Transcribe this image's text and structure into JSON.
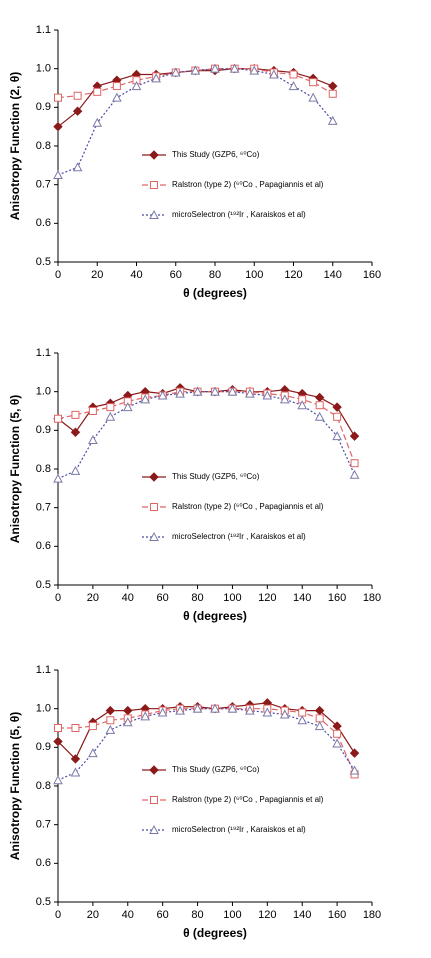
{
  "chart_data": [
    {
      "type": "line",
      "xlabel": "θ (degrees)",
      "ylabel": "Anisotropy Function (2, θ)",
      "x": [
        0,
        10,
        20,
        30,
        40,
        50,
        60,
        70,
        80,
        90,
        100,
        110,
        120,
        130,
        140
      ],
      "xlim": [
        0,
        160
      ],
      "xticks": [
        0,
        20,
        40,
        60,
        80,
        100,
        120,
        140,
        160
      ],
      "ylim": [
        0.5,
        1.1
      ],
      "yticks": [
        0.5,
        0.6,
        0.7,
        0.8,
        0.9,
        {
          "value": 1,
          "label": "1.0"
        },
        1.1
      ],
      "series": [
        {
          "name": "This Study (GZP6, ⁶⁰Co)",
          "color": "#8b1a1a",
          "marker": "diamond",
          "dash": "solid",
          "values": [
            0.85,
            0.89,
            0.955,
            0.97,
            0.985,
            0.985,
            0.99,
            0.995,
            0.995,
            1.0,
            1.0,
            0.995,
            0.99,
            0.975,
            0.955
          ]
        },
        {
          "name": "Ralstron (type 2) (⁶⁰Co , Papagiannis et al)",
          "color": "#e06666",
          "marker": "square",
          "dash": "dashed",
          "values": [
            0.925,
            0.93,
            0.94,
            0.955,
            0.97,
            0.98,
            0.99,
            0.995,
            1.0,
            1.0,
            1.0,
            0.99,
            0.985,
            0.965,
            0.935
          ]
        },
        {
          "name": "microSelectron (¹⁹²Ir , Karaiskos et al)",
          "color": "#4a4aa8",
          "marker": "triangle",
          "dash": "dotted",
          "values": [
            0.725,
            0.745,
            0.86,
            0.925,
            0.955,
            0.975,
            0.99,
            0.995,
            1.0,
            1.0,
            0.995,
            0.985,
            0.955,
            0.925,
            0.865
          ]
        }
      ]
    },
    {
      "type": "line",
      "xlabel": "θ (degrees)",
      "ylabel": "Anisotropy Function (5, θ)",
      "x": [
        0,
        10,
        20,
        30,
        40,
        50,
        60,
        70,
        80,
        90,
        100,
        110,
        120,
        130,
        140,
        150,
        160,
        170
      ],
      "xlim": [
        0,
        180
      ],
      "xticks": [
        0,
        20,
        40,
        60,
        80,
        100,
        120,
        140,
        160,
        180
      ],
      "ylim": [
        0.5,
        1.1
      ],
      "yticks": [
        0.5,
        0.6,
        0.7,
        0.8,
        0.9,
        {
          "value": 1,
          "label": "1.0"
        },
        1.1
      ],
      "series": [
        {
          "name": "This Study (GZP6, ⁶⁰Co)",
          "color": "#8b1a1a",
          "marker": "diamond",
          "dash": "solid",
          "values": [
            0.93,
            0.895,
            0.96,
            0.97,
            0.99,
            1.0,
            0.995,
            1.01,
            1.0,
            1.0,
            1.005,
            1.0,
            1.0,
            1.005,
            0.995,
            0.985,
            0.96,
            0.885
          ]
        },
        {
          "name": "Ralstron (type 2) (⁶⁰Co , Papagiannis et al)",
          "color": "#e06666",
          "marker": "square",
          "dash": "dashed",
          "values": [
            0.93,
            0.94,
            0.95,
            0.96,
            0.975,
            0.985,
            0.99,
            1.0,
            1.0,
            1.0,
            1.0,
            1.0,
            0.995,
            0.99,
            0.98,
            0.965,
            0.935,
            0.815
          ]
        },
        {
          "name": "microSelectron (¹⁹²Ir , Karaiskos et al)",
          "color": "#4a4aa8",
          "marker": "triangle",
          "dash": "dotted",
          "values": [
            0.775,
            0.795,
            0.875,
            0.935,
            0.96,
            0.98,
            0.99,
            0.995,
            1.0,
            1.0,
            1.0,
            0.995,
            0.99,
            0.98,
            0.965,
            0.935,
            0.885,
            0.785
          ]
        }
      ]
    },
    {
      "type": "line",
      "xlabel": "θ (degrees)",
      "ylabel": "Anisotropy Function (5, θ)",
      "x": [
        0,
        10,
        20,
        30,
        40,
        50,
        60,
        70,
        80,
        90,
        100,
        110,
        120,
        130,
        140,
        150,
        160,
        170
      ],
      "xlim": [
        0,
        180
      ],
      "xticks": [
        0,
        20,
        40,
        60,
        80,
        100,
        120,
        140,
        160,
        180
      ],
      "ylim": [
        0.5,
        1.1
      ],
      "yticks": [
        0.5,
        0.6,
        0.7,
        0.8,
        0.9,
        {
          "value": 1,
          "label": "1.0"
        },
        1.1
      ],
      "series": [
        {
          "name": "This Study (GZP6, ⁶⁰Co)",
          "color": "#8b1a1a",
          "marker": "diamond",
          "dash": "solid",
          "values": [
            0.915,
            0.87,
            0.965,
            0.995,
            0.995,
            1.0,
            1.0,
            1.005,
            1.005,
            1.0,
            1.005,
            1.01,
            1.015,
            1.0,
            0.995,
            0.995,
            0.955,
            0.885
          ]
        },
        {
          "name": "Ralstron (type 2) (⁶⁰Co , Papagiannis et al)",
          "color": "#e06666",
          "marker": "square",
          "dash": "dashed",
          "values": [
            0.95,
            0.95,
            0.955,
            0.97,
            0.975,
            0.985,
            0.995,
            1.0,
            1.0,
            1.0,
            1.0,
            1.0,
            1.0,
            0.995,
            0.99,
            0.975,
            0.935,
            0.83
          ]
        },
        {
          "name": "microSelectron (¹⁹²Ir , Karaiskos et al)",
          "color": "#4a4aa8",
          "marker": "triangle",
          "dash": "dotted",
          "values": [
            0.815,
            0.835,
            0.885,
            0.945,
            0.965,
            0.98,
            0.99,
            0.995,
            1.0,
            1.0,
            1.0,
            0.995,
            0.99,
            0.985,
            0.97,
            0.955,
            0.91,
            0.84
          ]
        }
      ]
    }
  ]
}
